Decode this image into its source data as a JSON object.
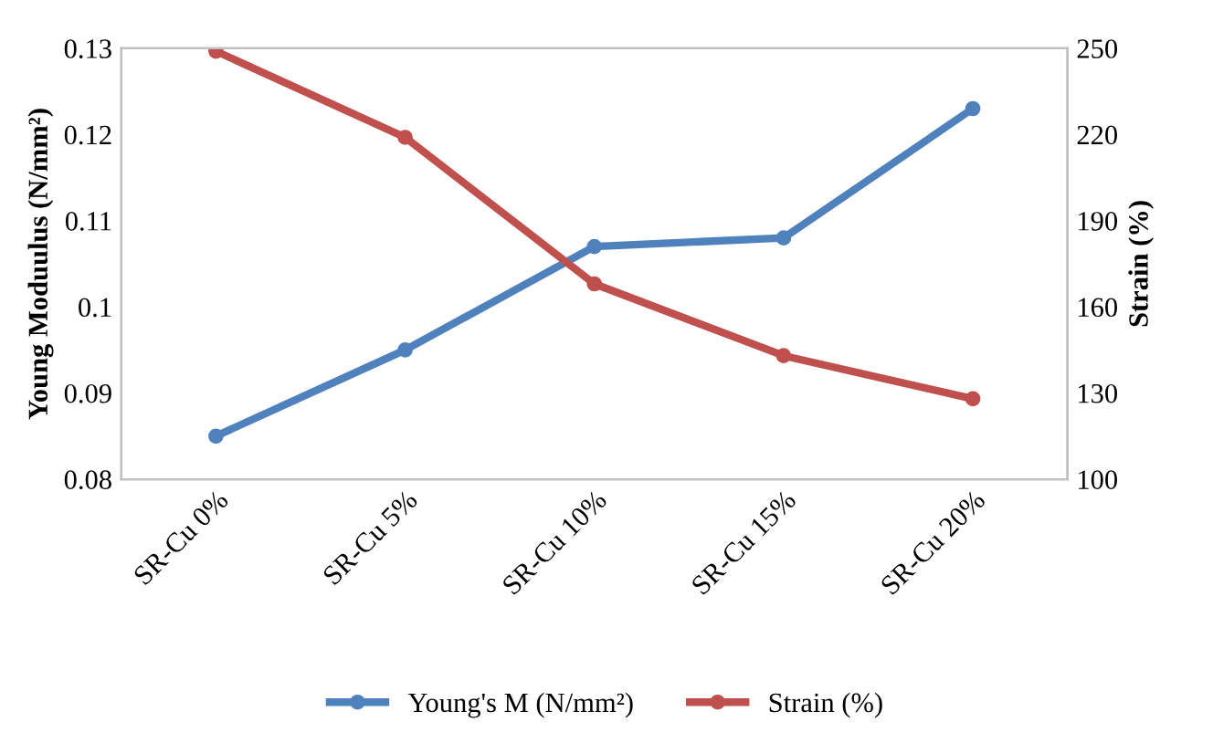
{
  "chart_data": {
    "type": "line",
    "ylabel": "Young Moduulus (N/mm²)",
    "y2label": "Strain (%)",
    "categories": [
      "SR-Cu 0%",
      "SR-Cu 5%",
      "SR-Cu 10%",
      "SR-Cu 15%",
      "SR-Cu 20%"
    ],
    "series": [
      {
        "name": "Young's M (N/mm²)",
        "color": "#4f81bd",
        "values": [
          0.085,
          0.095,
          0.107,
          0.108,
          0.123
        ]
      },
      {
        "name": "Strain (%)",
        "color": "#c0504d",
        "axis": "y2",
        "values": [
          249,
          219,
          168,
          143,
          128
        ]
      }
    ],
    "ylim": [
      0.08,
      0.13
    ],
    "yticks": [
      0.08,
      0.09,
      0.1,
      0.11,
      0.12,
      0.13
    ],
    "y2lim": [
      100,
      250
    ],
    "y2ticks": [
      100,
      130,
      160,
      190,
      220,
      250
    ],
    "grid": false,
    "legend": "bottom",
    "marker": "circle",
    "line_style": "solid"
  }
}
